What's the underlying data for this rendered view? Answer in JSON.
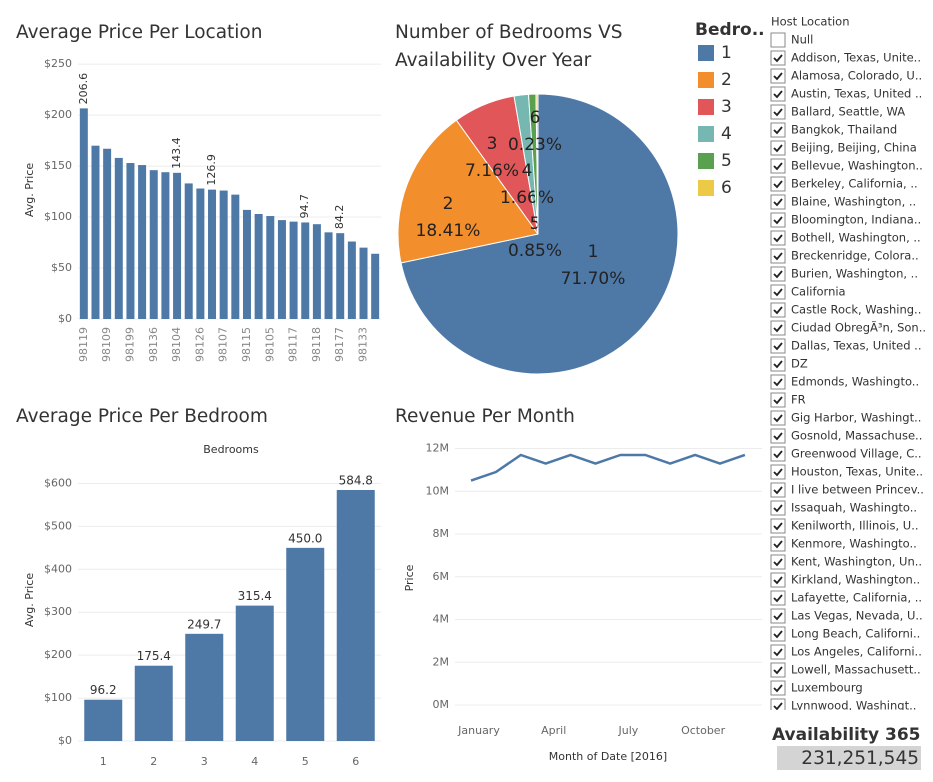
{
  "chart_data": [
    {
      "type": "bar",
      "title": "Average Price Per Location",
      "y_label": "Avg. Price",
      "categories": [
        "98119",
        null,
        "98109",
        null,
        "98199",
        null,
        "98136",
        null,
        "98104",
        null,
        "98126",
        null,
        "98107",
        null,
        "98115",
        null,
        "98105",
        null,
        "98117",
        null,
        "98118",
        null,
        "98177",
        null,
        "98133",
        null
      ],
      "values": [
        206.6,
        170,
        167,
        158,
        153,
        151,
        146,
        144,
        143.4,
        133,
        128,
        126.9,
        126,
        122,
        107,
        103,
        101,
        97,
        95.5,
        94.7,
        93,
        85,
        84.2,
        76,
        70,
        64
      ],
      "value_labels": [
        "206.6",
        null,
        null,
        null,
        null,
        null,
        null,
        null,
        "143.4",
        null,
        null,
        "126.9",
        null,
        null,
        null,
        null,
        null,
        null,
        null,
        "94.7",
        null,
        null,
        "84.2",
        null,
        null,
        null
      ],
      "color": "#4e79a7",
      "ylim": [
        0,
        257
      ],
      "yticks": [
        {
          "value": 0,
          "label": "$0"
        },
        {
          "value": 50,
          "label": "$50"
        },
        {
          "value": 100,
          "label": "$100"
        },
        {
          "value": 150,
          "label": "$150"
        },
        {
          "value": 200,
          "label": "$200"
        },
        {
          "value": 250,
          "label": "$250"
        }
      ],
      "grid": true
    },
    {
      "type": "pie",
      "title": "Number of Bedrooms VS Availability Over Year",
      "legend_title": "Bedro..",
      "categories": [
        "1",
        "2",
        "3",
        "4",
        "5",
        "6"
      ],
      "values": [
        71.7,
        18.41,
        7.16,
        1.66,
        0.85,
        0.23
      ],
      "value_labels": [
        "71.70%",
        "18.41%",
        "7.16%",
        "1.66%",
        "0.85%",
        "0.23%"
      ],
      "colors": [
        "#4e79a7",
        "#f28e2b",
        "#e15759",
        "#76b7b2",
        "#59a14f",
        "#edc948"
      ]
    },
    {
      "type": "bar",
      "title": "Average Price Per Bedroom",
      "header": "Bedrooms",
      "y_label": "Avg. Price",
      "categories": [
        "1",
        "2",
        "3",
        "4",
        "5",
        "6"
      ],
      "values": [
        96.2,
        175.4,
        249.7,
        315.4,
        450.0,
        584.8
      ],
      "value_labels": [
        "96.2",
        "175.4",
        "249.7",
        "315.4",
        "450.0",
        "584.8"
      ],
      "color": "#4e79a7",
      "ylim": [
        0,
        650
      ],
      "yticks": [
        {
          "value": 0,
          "label": "$0"
        },
        {
          "value": 100,
          "label": "$100"
        },
        {
          "value": 200,
          "label": "$200"
        },
        {
          "value": 300,
          "label": "$300"
        },
        {
          "value": 400,
          "label": "$400"
        },
        {
          "value": 500,
          "label": "$500"
        },
        {
          "value": 600,
          "label": "$600"
        }
      ],
      "grid": true
    },
    {
      "type": "line",
      "title": "Revenue Per Month",
      "x_label": "Month of Date [2016]",
      "y_label": "Price",
      "categories": [
        "January",
        null,
        null,
        "April",
        null,
        null,
        "July",
        null,
        null,
        "October",
        null,
        null
      ],
      "values": [
        10500000,
        10900000,
        11700000,
        11300000,
        11700000,
        11300000,
        11700000,
        11700000,
        11300000,
        11700000,
        11300000,
        11700000
      ],
      "color": "#4e79a7",
      "ylim": [
        0,
        12400000
      ],
      "yticks": [
        {
          "value": 0,
          "label": "0M"
        },
        {
          "value": 2000000,
          "label": "2M"
        },
        {
          "value": 4000000,
          "label": "4M"
        },
        {
          "value": 6000000,
          "label": "6M"
        },
        {
          "value": 8000000,
          "label": "8M"
        },
        {
          "value": 10000000,
          "label": "10M"
        },
        {
          "value": 12000000,
          "label": "12M"
        }
      ],
      "grid": true
    }
  ],
  "filter": {
    "title": "Host Location",
    "items": [
      {
        "label": "Null",
        "checked": false
      },
      {
        "label": "Addison, Texas, Unite..",
        "checked": true
      },
      {
        "label": "Alamosa, Colorado, U..",
        "checked": true
      },
      {
        "label": "Austin, Texas, United ..",
        "checked": true
      },
      {
        "label": "Ballard, Seattle, WA",
        "checked": true
      },
      {
        "label": "Bangkok, Thailand",
        "checked": true
      },
      {
        "label": "Beijing, Beijing, China",
        "checked": true
      },
      {
        "label": "Bellevue, Washington..",
        "checked": true
      },
      {
        "label": "Berkeley, California, ..",
        "checked": true
      },
      {
        "label": "Blaine, Washington, ..",
        "checked": true
      },
      {
        "label": "Bloomington, Indiana..",
        "checked": true
      },
      {
        "label": "Bothell, Washington, ..",
        "checked": true
      },
      {
        "label": "Breckenridge, Colora..",
        "checked": true
      },
      {
        "label": "Burien, Washington, ..",
        "checked": true
      },
      {
        "label": "California",
        "checked": true
      },
      {
        "label": "Castle Rock, Washing..",
        "checked": true
      },
      {
        "label": "Ciudad ObregÃ³n, Son..",
        "checked": true
      },
      {
        "label": "Dallas, Texas, United ..",
        "checked": true
      },
      {
        "label": "DZ",
        "checked": true
      },
      {
        "label": "Edmonds, Washingto..",
        "checked": true
      },
      {
        "label": "FR",
        "checked": true
      },
      {
        "label": "Gig Harbor, Washingt..",
        "checked": true
      },
      {
        "label": "Gosnold, Massachuse..",
        "checked": true
      },
      {
        "label": "Greenwood Village, C..",
        "checked": true
      },
      {
        "label": "Houston, Texas, Unite..",
        "checked": true
      },
      {
        "label": "I live between Princev..",
        "checked": true
      },
      {
        "label": "Issaquah, Washingto..",
        "checked": true
      },
      {
        "label": "Kenilworth, Illinois, U..",
        "checked": true
      },
      {
        "label": "Kenmore, Washingto..",
        "checked": true
      },
      {
        "label": "Kent, Washington, Un..",
        "checked": true
      },
      {
        "label": "Kirkland, Washington..",
        "checked": true
      },
      {
        "label": "Lafayette, California, ..",
        "checked": true
      },
      {
        "label": "Las Vegas, Nevada, U..",
        "checked": true
      },
      {
        "label": "Long Beach, Californi..",
        "checked": true
      },
      {
        "label": "Los Angeles, Californi..",
        "checked": true
      },
      {
        "label": "Lowell, Massachusett..",
        "checked": true
      },
      {
        "label": "Luxembourg",
        "checked": true
      },
      {
        "label": "Lynnwood, Washingt..",
        "checked": true
      }
    ]
  },
  "kpi": {
    "title": "Availability 365",
    "value": "231,251,545"
  }
}
